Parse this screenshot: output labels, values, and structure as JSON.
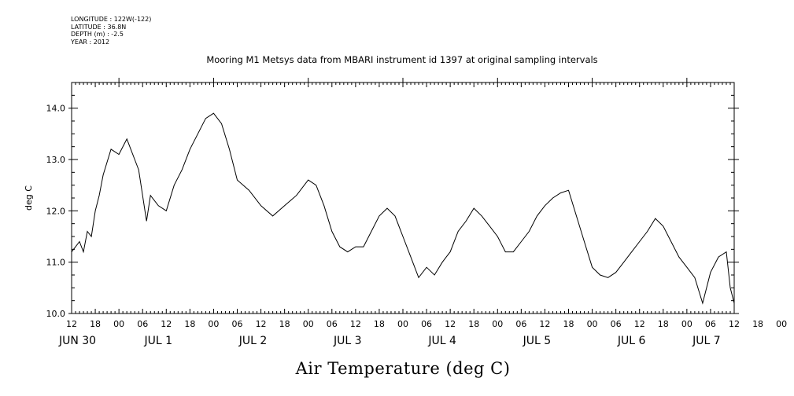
{
  "meta": {
    "longitude": "LONGITUDE : 122W(-122)",
    "latitude": "LATITUDE : 36.8N",
    "depth": "DEPTH (m) : -2.5",
    "year": "YEAR : 2012"
  },
  "chart_data": {
    "type": "line",
    "title": "Mooring M1 Metsys data from MBARI instrument id 1397 at original sampling intervals",
    "xlabel": "Air Temperature (deg C)",
    "ylabel": "deg C",
    "xlim": [
      "2012-06-30T12:00",
      "2012-07-07T12:00"
    ],
    "ylim": [
      10.0,
      14.5
    ],
    "yticks": [
      10.0,
      11.0,
      12.0,
      13.0,
      14.0
    ],
    "ytick_labels": [
      "10.0",
      "11.0",
      "12.0",
      "13.0",
      "14.0"
    ],
    "xtick_hour_labels": [
      "12",
      "18",
      "00",
      "06",
      "12",
      "18",
      "00",
      "06",
      "12",
      "18",
      "00",
      "06",
      "12",
      "18",
      "00",
      "06",
      "12",
      "18",
      "00",
      "06",
      "12",
      "18",
      "00",
      "06",
      "12",
      "18",
      "00",
      "06",
      "12",
      "18",
      "00",
      "06",
      "12"
    ],
    "day_labels": [
      "JUN 30",
      "JUL 1",
      "JUL 2",
      "JUL 3",
      "JUL 4",
      "JUL 5",
      "JUL 6",
      "JUL 7"
    ],
    "grid": false,
    "series": [
      {
        "x": [
          "2012-06-30T12:00",
          "2012-06-30T13:00",
          "2012-06-30T14:00",
          "2012-06-30T15:00",
          "2012-06-30T16:00",
          "2012-06-30T17:00",
          "2012-06-30T18:00",
          "2012-06-30T19:00",
          "2012-06-30T20:00",
          "2012-06-30T22:00",
          "2012-07-01T00:00",
          "2012-07-01T02:00",
          "2012-07-01T04:00",
          "2012-07-01T05:00",
          "2012-07-01T06:00",
          "2012-07-01T07:00",
          "2012-07-01T08:00",
          "2012-07-01T10:00",
          "2012-07-01T12:00",
          "2012-07-01T14:00",
          "2012-07-01T16:00",
          "2012-07-01T18:00",
          "2012-07-01T20:00",
          "2012-07-01T22:00",
          "2012-07-02T00:00",
          "2012-07-02T02:00",
          "2012-07-02T04:00",
          "2012-07-02T06:00",
          "2012-07-02T09:00",
          "2012-07-02T12:00",
          "2012-07-02T15:00",
          "2012-07-02T18:00",
          "2012-07-02T21:00",
          "2012-07-03T00:00",
          "2012-07-03T02:00",
          "2012-07-03T04:00",
          "2012-07-03T06:00",
          "2012-07-03T08:00",
          "2012-07-03T10:00",
          "2012-07-03T12:00",
          "2012-07-03T14:00",
          "2012-07-03T16:00",
          "2012-07-03T18:00",
          "2012-07-03T20:00",
          "2012-07-03T22:00",
          "2012-07-04T00:00",
          "2012-07-04T02:00",
          "2012-07-04T04:00",
          "2012-07-04T06:00",
          "2012-07-04T08:00",
          "2012-07-04T10:00",
          "2012-07-04T11:00",
          "2012-07-04T12:00",
          "2012-07-04T14:00",
          "2012-07-04T16:00",
          "2012-07-04T18:00",
          "2012-07-04T20:00",
          "2012-07-04T22:00",
          "2012-07-05T00:00",
          "2012-07-05T02:00",
          "2012-07-05T04:00",
          "2012-07-05T06:00",
          "2012-07-05T08:00",
          "2012-07-05T10:00",
          "2012-07-05T12:00",
          "2012-07-05T14:00",
          "2012-07-05T16:00",
          "2012-07-05T18:00",
          "2012-07-05T20:00",
          "2012-07-05T22:00",
          "2012-07-06T00:00",
          "2012-07-06T02:00",
          "2012-07-06T04:00",
          "2012-07-06T06:00",
          "2012-07-06T08:00",
          "2012-07-06T10:00",
          "2012-07-06T12:00",
          "2012-07-06T14:00",
          "2012-07-06T16:00",
          "2012-07-06T18:00",
          "2012-07-06T20:00",
          "2012-07-06T22:00",
          "2012-07-07T00:00",
          "2012-07-07T02:00",
          "2012-07-07T04:00",
          "2012-07-07T06:00",
          "2012-07-07T08:00",
          "2012-07-07T10:00",
          "2012-07-07T11:00",
          "2012-07-07T12:00"
        ],
        "y": [
          11.2,
          11.3,
          11.4,
          11.2,
          11.6,
          11.5,
          12.0,
          12.3,
          12.7,
          13.2,
          13.1,
          13.4,
          13.0,
          12.8,
          12.3,
          11.8,
          12.3,
          12.1,
          12.0,
          12.5,
          12.8,
          13.2,
          13.5,
          13.8,
          13.9,
          13.7,
          13.2,
          12.6,
          12.4,
          12.1,
          11.9,
          12.1,
          12.3,
          12.6,
          12.5,
          12.1,
          11.6,
          11.3,
          11.2,
          11.3,
          11.3,
          11.6,
          11.9,
          12.05,
          11.9,
          11.5,
          11.1,
          10.7,
          10.9,
          10.75,
          11.0,
          11.1,
          11.2,
          11.6,
          11.8,
          12.05,
          11.9,
          11.7,
          11.5,
          11.2,
          11.2,
          11.4,
          11.6,
          11.9,
          12.1,
          12.25,
          12.35,
          12.4,
          11.9,
          11.4,
          10.9,
          10.75,
          10.7,
          10.8,
          11.0,
          11.2,
          11.4,
          11.6,
          11.85,
          11.7,
          11.4,
          11.1,
          10.9,
          10.7,
          10.2,
          10.8,
          11.1,
          11.2,
          10.5,
          10.2
        ]
      }
    ]
  }
}
